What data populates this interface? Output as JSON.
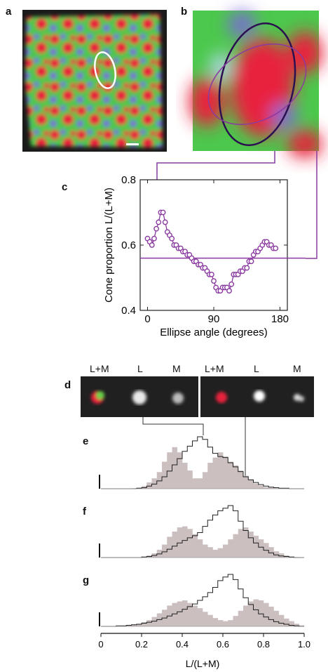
{
  "panels": {
    "a": "a",
    "b": "b",
    "c": "c",
    "d": "d",
    "e": "e",
    "f": "f",
    "g": "g"
  },
  "colors": {
    "red": "#e8203c",
    "green": "#4cc84c",
    "blue": "#7a6ad8",
    "purple": "#8a3aa0",
    "gray": "#c8c0c0"
  },
  "panel_d": {
    "labels_left": [
      "L+M",
      "L",
      "M"
    ],
    "labels_right": [
      "L+M",
      "L",
      "M"
    ]
  },
  "chart_data": [
    {
      "type": "scatter",
      "panel": "c",
      "ylabel": "Cone proportion L/(L+M)",
      "xlabel": "Ellipse angle (degrees)",
      "xlim": [
        -10,
        190
      ],
      "ylim": [
        0.4,
        0.8
      ],
      "xticks": [
        "0",
        "90",
        "180"
      ],
      "yticks": [
        "0.4",
        "0.6",
        "0.8"
      ],
      "reference_line": 0.56,
      "x": [
        0,
        3,
        6,
        9,
        12,
        15,
        18,
        21,
        24,
        27,
        30,
        33,
        36,
        39,
        42,
        45,
        48,
        51,
        54,
        57,
        60,
        63,
        66,
        69,
        72,
        75,
        78,
        81,
        84,
        87,
        90,
        93,
        96,
        99,
        102,
        105,
        108,
        111,
        114,
        117,
        120,
        123,
        126,
        129,
        132,
        135,
        138,
        141,
        144,
        147,
        150,
        153,
        156,
        159,
        162,
        165,
        168,
        171,
        174
      ],
      "y": [
        0.62,
        0.61,
        0.6,
        0.62,
        0.65,
        0.67,
        0.7,
        0.7,
        0.67,
        0.64,
        0.63,
        0.62,
        0.6,
        0.6,
        0.59,
        0.59,
        0.58,
        0.58,
        0.57,
        0.57,
        0.56,
        0.55,
        0.55,
        0.54,
        0.54,
        0.53,
        0.53,
        0.52,
        0.51,
        0.51,
        0.49,
        0.47,
        0.46,
        0.46,
        0.47,
        0.47,
        0.47,
        0.46,
        0.48,
        0.51,
        0.51,
        0.51,
        0.52,
        0.52,
        0.53,
        0.53,
        0.55,
        0.55,
        0.57,
        0.58,
        0.58,
        0.59,
        0.6,
        0.61,
        0.61,
        0.6,
        0.6,
        0.59,
        0.59
      ]
    },
    {
      "type": "bar",
      "panel": "e",
      "xlim": [
        0,
        1
      ],
      "x": [
        0.0,
        0.025,
        0.05,
        0.075,
        0.1,
        0.125,
        0.15,
        0.175,
        0.2,
        0.225,
        0.25,
        0.275,
        0.3,
        0.325,
        0.35,
        0.375,
        0.4,
        0.425,
        0.45,
        0.475,
        0.5,
        0.525,
        0.55,
        0.575,
        0.6,
        0.625,
        0.65,
        0.675,
        0.7,
        0.725,
        0.75,
        0.775,
        0.8,
        0.825,
        0.85,
        0.875,
        0.9,
        0.925,
        0.95,
        0.975
      ],
      "series": [
        {
          "values": [
            0,
            0,
            0,
            0,
            0,
            0,
            0.01,
            0.02,
            0.05,
            0.12,
            0.2,
            0.32,
            0.52,
            0.7,
            0.8,
            0.7,
            0.5,
            0.35,
            0.2,
            0.2,
            0.32,
            0.5,
            0.6,
            0.7,
            0.62,
            0.52,
            0.45,
            0.35,
            0.25,
            0.18,
            0.1,
            0.06,
            0.03,
            0.02,
            0.01,
            0,
            0,
            0,
            0,
            0
          ]
        },
        {
          "values": [
            0,
            0,
            0,
            0,
            0,
            0,
            0,
            0.01,
            0.02,
            0.05,
            0.09,
            0.15,
            0.23,
            0.34,
            0.46,
            0.58,
            0.72,
            0.82,
            0.92,
            1.0,
            0.95,
            0.8,
            0.68,
            0.62,
            0.6,
            0.5,
            0.42,
            0.33,
            0.23,
            0.17,
            0.12,
            0.08,
            0.05,
            0.03,
            0.02,
            0.01,
            0.01,
            0,
            0,
            0
          ]
        }
      ]
    },
    {
      "type": "bar",
      "panel": "f",
      "xlim": [
        0,
        1
      ],
      "x": [
        0.0,
        0.025,
        0.05,
        0.075,
        0.1,
        0.125,
        0.15,
        0.175,
        0.2,
        0.225,
        0.25,
        0.275,
        0.3,
        0.325,
        0.35,
        0.375,
        0.4,
        0.425,
        0.45,
        0.475,
        0.5,
        0.525,
        0.55,
        0.575,
        0.6,
        0.625,
        0.65,
        0.675,
        0.7,
        0.725,
        0.75,
        0.775,
        0.8,
        0.825,
        0.85,
        0.875,
        0.9,
        0.925,
        0.95,
        0.975
      ],
      "series": [
        {
          "values": [
            0,
            0,
            0,
            0,
            0,
            0,
            0,
            0,
            0.02,
            0.04,
            0.08,
            0.15,
            0.25,
            0.4,
            0.5,
            0.58,
            0.6,
            0.55,
            0.45,
            0.35,
            0.25,
            0.2,
            0.15,
            0.18,
            0.25,
            0.35,
            0.45,
            0.55,
            0.58,
            0.5,
            0.42,
            0.35,
            0.28,
            0.2,
            0.12,
            0.08,
            0.04,
            0.02,
            0.01,
            0
          ]
        },
        {
          "values": [
            0,
            0,
            0,
            0,
            0,
            0,
            0,
            0,
            0.01,
            0.02,
            0.04,
            0.07,
            0.11,
            0.16,
            0.22,
            0.28,
            0.33,
            0.38,
            0.42,
            0.48,
            0.6,
            0.72,
            0.82,
            0.9,
            0.95,
            1.0,
            0.9,
            0.7,
            0.52,
            0.38,
            0.28,
            0.2,
            0.14,
            0.09,
            0.05,
            0.03,
            0.02,
            0.01,
            0,
            0
          ]
        }
      ]
    },
    {
      "type": "bar",
      "panel": "g",
      "xlabel": "L/(L+M)",
      "xlim": [
        0,
        1
      ],
      "xticks": [
        "0",
        "0.2",
        "0.4",
        "0.6",
        "0.8",
        "1.0"
      ],
      "x": [
        0.0,
        0.025,
        0.05,
        0.075,
        0.1,
        0.125,
        0.15,
        0.175,
        0.2,
        0.225,
        0.25,
        0.275,
        0.3,
        0.325,
        0.35,
        0.375,
        0.4,
        0.425,
        0.45,
        0.475,
        0.5,
        0.525,
        0.55,
        0.575,
        0.6,
        0.625,
        0.65,
        0.675,
        0.7,
        0.725,
        0.75,
        0.775,
        0.8,
        0.825,
        0.85,
        0.875,
        0.9,
        0.925,
        0.95,
        0.975
      ],
      "series": [
        {
          "values": [
            0,
            0,
            0,
            0,
            0.01,
            0.02,
            0.03,
            0.05,
            0.08,
            0.12,
            0.18,
            0.25,
            0.32,
            0.4,
            0.45,
            0.48,
            0.5,
            0.45,
            0.4,
            0.35,
            0.28,
            0.22,
            0.16,
            0.12,
            0.1,
            0.12,
            0.2,
            0.3,
            0.4,
            0.48,
            0.52,
            0.5,
            0.45,
            0.38,
            0.3,
            0.22,
            0.15,
            0.1,
            0.05,
            0.02
          ]
        },
        {
          "values": [
            0,
            0,
            0,
            0.01,
            0.01,
            0.02,
            0.03,
            0.04,
            0.06,
            0.08,
            0.1,
            0.13,
            0.16,
            0.2,
            0.24,
            0.28,
            0.33,
            0.38,
            0.43,
            0.5,
            0.57,
            0.65,
            0.75,
            0.88,
            0.95,
            1.0,
            0.9,
            0.72,
            0.55,
            0.42,
            0.32,
            0.24,
            0.18,
            0.13,
            0.09,
            0.06,
            0.04,
            0.02,
            0.01,
            0
          ]
        }
      ]
    }
  ]
}
